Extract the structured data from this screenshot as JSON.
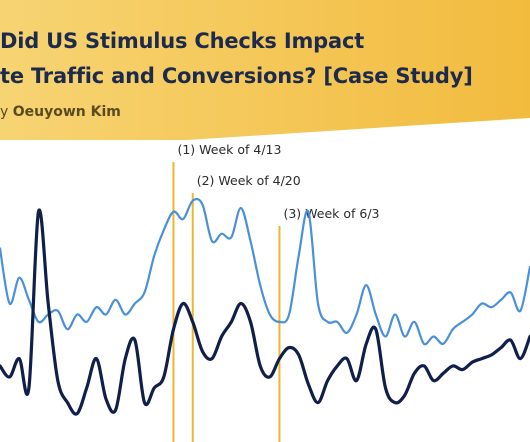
{
  "header": {
    "title_line1": "Did US Stimulus Checks Impact",
    "title_line2": "te Traffic and Conversions? [Case Study]",
    "byline_prefix": "y ",
    "byline_author": "Oeuyown Kim"
  },
  "colors": {
    "banner_left": "#f7d473",
    "banner_right": "#f2bb3e",
    "traffic_line": "#4a90d9",
    "conversions_line": "#0f1f4a",
    "marker_line": "#eab72f"
  },
  "chart_data": {
    "type": "line",
    "series": [
      {
        "values": [
          5,
          3.5,
          4.2,
          3.6,
          3,
          3.2,
          3.3,
          2.8,
          3.2,
          3.0,
          3.4,
          3.2,
          3.6,
          3.2,
          3.5,
          3.8,
          4.8,
          5.5,
          6.0,
          5.8,
          6.3,
          6.2,
          5.2,
          5.4,
          5.3,
          6.1,
          5.2,
          4.0,
          3.2,
          3.0,
          3.2,
          4.8,
          6.0,
          3.5,
          3.0,
          3.0,
          2.7,
          3.2,
          4.0,
          3.2,
          2.6,
          3.2,
          2.6,
          3.0,
          2.4,
          2.6,
          2.4,
          2.8,
          3.0,
          3.2,
          3.5,
          3.4,
          3.6,
          3.8,
          3.3,
          4.5
        ]
      },
      {
        "values": [
          1.8,
          1.5,
          2.0,
          1.2,
          6.0,
          3.5,
          1.4,
          0.8,
          0.5,
          1.2,
          2.0,
          0.9,
          0.6,
          2.0,
          2.5,
          0.8,
          1.2,
          1.5,
          2.8,
          3.5,
          3.0,
          2.2,
          2.0,
          2.6,
          3.0,
          3.5,
          3.0,
          1.8,
          1.5,
          2.0,
          2.3,
          2.1,
          1.3,
          0.8,
          1.4,
          1.8,
          2.0,
          1.4,
          2.4,
          2.8,
          1.2,
          0.8,
          1.0,
          1.6,
          1.8,
          1.4,
          1.6,
          1.8,
          1.7,
          1.9,
          2.0,
          2.1,
          2.3,
          2.5,
          2.0,
          2.6
        ]
      }
    ],
    "ylim": [
      0,
      7
    ],
    "annotations": [
      {
        "label": "(1) Week of 4/13",
        "index": 18
      },
      {
        "label": "(2) Week of 4/20",
        "index": 20
      },
      {
        "label": "(3) Week of 6/3",
        "index": 29
      }
    ]
  }
}
